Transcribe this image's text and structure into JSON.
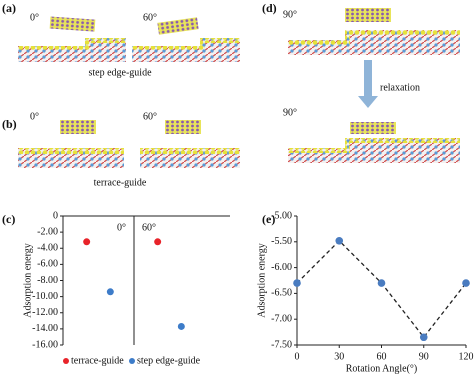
{
  "panels": {
    "a": {
      "label": "(a)",
      "angles": [
        "0°",
        "60°"
      ],
      "caption": "step edge-guide"
    },
    "b": {
      "label": "(b)",
      "angles": [
        "0°",
        "60°"
      ],
      "caption": "terrace-guide"
    },
    "d": {
      "label": "(d)",
      "angles": [
        "90°",
        "90°"
      ],
      "arrow_label": "relaxation"
    }
  },
  "chart_data": [
    {
      "type": "scatter",
      "label": "(c)",
      "ylabel": "Adsorption energy",
      "categories": [
        "0°",
        "60°"
      ],
      "series": [
        {
          "name": "terrace-guide",
          "color": "#e8232a",
          "values": [
            -3.2,
            -3.2
          ]
        },
        {
          "name": "step edge-guide",
          "color": "#3d7cc9",
          "values": [
            -9.4,
            -13.7
          ]
        }
      ],
      "ylim": [
        -16,
        0
      ],
      "yticks": [
        0,
        {
          "value": -2,
          "label": "-2.00"
        },
        {
          "value": -4,
          "label": "-4.00"
        },
        {
          "value": -6,
          "label": "-6.00"
        },
        {
          "value": -8,
          "label": "-8.00"
        },
        {
          "value": -10,
          "label": "-10.00"
        },
        {
          "value": -12,
          "label": "-12.00"
        },
        {
          "value": -14,
          "label": "-14.00"
        },
        {
          "value": -16,
          "label": "-16.00"
        }
      ]
    },
    {
      "type": "line",
      "label": "(e)",
      "xlabel": "Rotation Angle(°)",
      "ylabel": "Adsorption energy",
      "x": [
        0,
        30,
        60,
        90,
        120
      ],
      "values": [
        -6.3,
        -5.48,
        -6.3,
        -7.35,
        -6.3
      ],
      "color": "#222222",
      "marker_color": "#4a7cc0",
      "dashed": true,
      "xlim": [
        0,
        120
      ],
      "xticks": [
        0,
        30,
        60,
        90,
        120
      ],
      "ylim": [
        -7.5,
        -5.0
      ],
      "yticks": [
        {
          "value": -5,
          "label": "-5.00"
        },
        {
          "value": -5.5,
          "label": "-5.50"
        },
        {
          "value": -6,
          "label": "-6.00"
        },
        {
          "value": -6.5,
          "label": "-6.50"
        },
        {
          "value": -7,
          "label": "-7.00"
        },
        {
          "value": -7.5,
          "label": "-7.50"
        }
      ]
    }
  ]
}
